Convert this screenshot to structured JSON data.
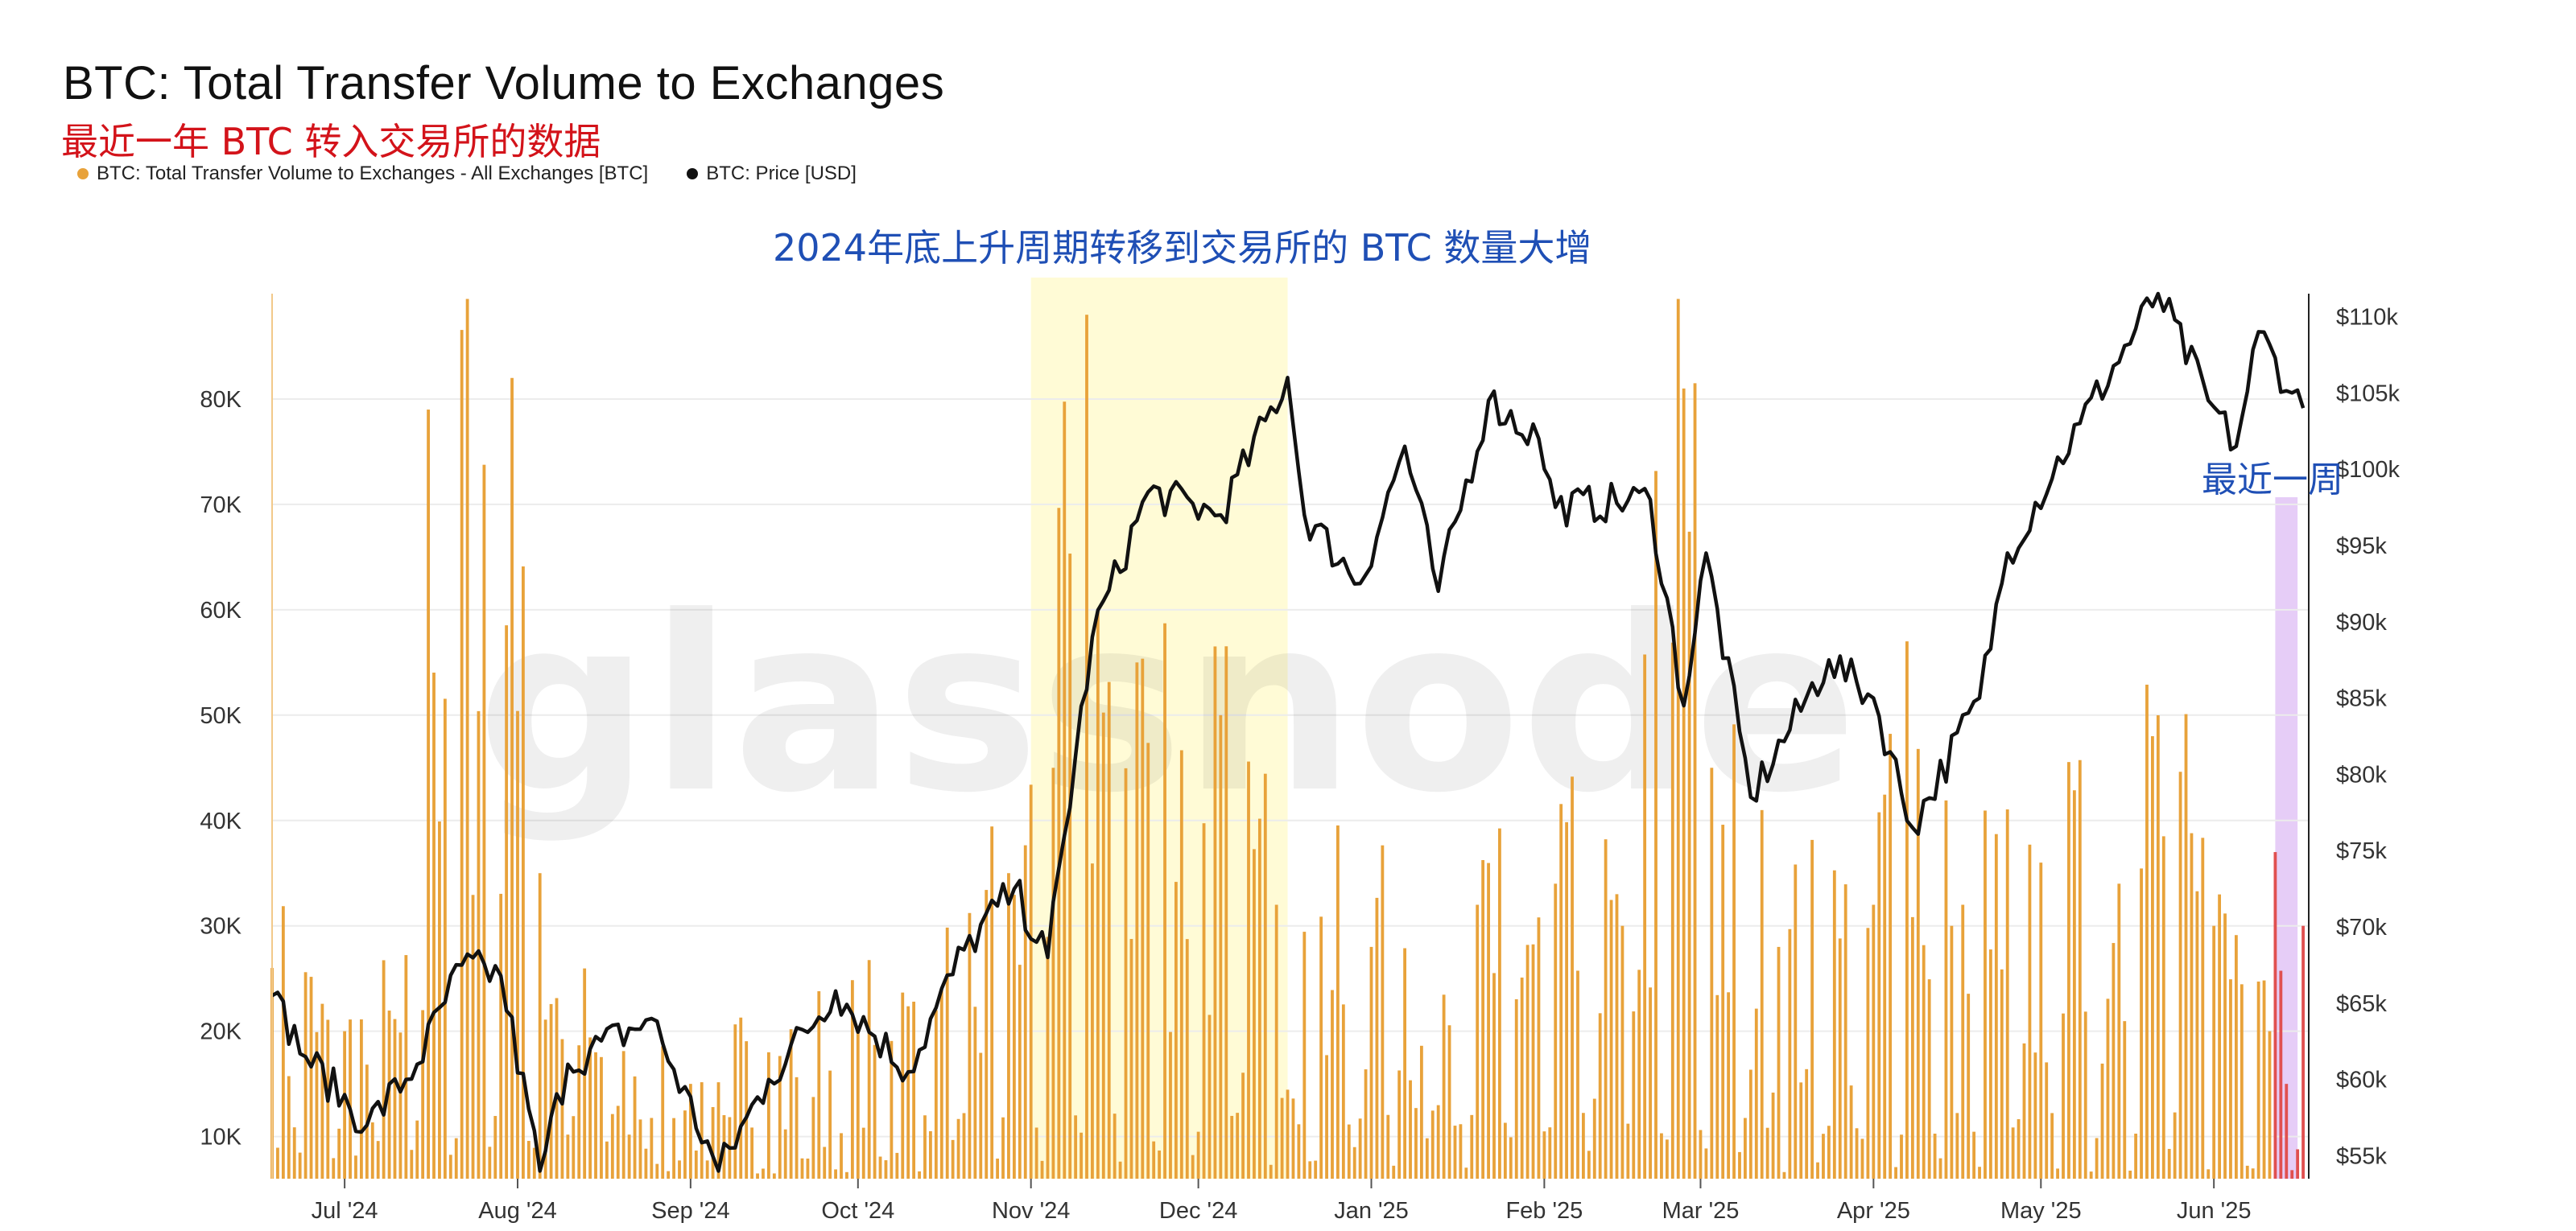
{
  "header": {
    "title": "BTC: Total Transfer Volume to Exchanges",
    "subtitle": "最近一年 BTC 转入交易所的数据"
  },
  "legend": [
    {
      "label": "BTC: Total Transfer Volume to Exchanges - All Exchanges [BTC]",
      "color": "#e8a23a"
    },
    {
      "label": "BTC: Price [USD]",
      "color": "#111111"
    }
  ],
  "annotations": {
    "main": "2024年底上升周期转移到交易所的 BTC 数量大增",
    "recent_week": "最近一周"
  },
  "watermark": "glassnode",
  "colors": {
    "bar": "#e8a23a",
    "bar_recent": "#e05050",
    "price_line": "#111111",
    "highlight_period": "#fffbd6",
    "highlight_week": "#e6cdf7"
  },
  "chart_data": {
    "type": "bar",
    "x_range": [
      "2024-06-18",
      "2025-06-18"
    ],
    "x_ticks": [
      "Jul '24",
      "Aug '24",
      "Sep '24",
      "Oct '24",
      "Nov '24",
      "Dec '24",
      "Jan '25",
      "Feb '25",
      "Mar '25",
      "Apr '25",
      "May '25",
      "Jun '25"
    ],
    "y_left": {
      "ticks": [
        "10K",
        "20K",
        "30K",
        "40K",
        "50K",
        "60K",
        "70K",
        "80K"
      ],
      "range": [
        6000,
        90000
      ]
    },
    "y_right": {
      "ticks": [
        "$55k",
        "$60k",
        "$65k",
        "$70k",
        "$75k",
        "$80k",
        "$85k",
        "$90k",
        "$95k",
        "$100k",
        "$105k",
        "$110k"
      ],
      "range": [
        53500,
        111500
      ]
    },
    "highlight_period": [
      "2024-11-01",
      "2024-12-17"
    ],
    "highlight_week": [
      "2025-06-12",
      "2025-06-16"
    ],
    "series": [
      {
        "name": "BTC: Total Transfer Volume to Exchanges - All Exchanges [BTC]",
        "axis": "left",
        "keypoints": [
          [
            "2024-06-18",
            26000
          ],
          [
            "2024-07-01",
            20000
          ],
          [
            "2024-07-15",
            22000
          ],
          [
            "2024-07-16",
            79000
          ],
          [
            "2024-07-31",
            82000
          ],
          [
            "2024-08-05",
            35000
          ],
          [
            "2024-08-15",
            18000
          ],
          [
            "2024-09-01",
            15000
          ],
          [
            "2024-09-15",
            18000
          ],
          [
            "2024-10-01",
            20000
          ],
          [
            "2024-10-15",
            22000
          ],
          [
            "2024-10-28",
            35000
          ],
          [
            "2024-11-05",
            45000
          ],
          [
            "2024-11-11",
            88000
          ],
          [
            "2024-11-13",
            60000
          ],
          [
            "2024-11-20",
            55000
          ],
          [
            "2024-12-05",
            50000
          ],
          [
            "2024-12-15",
            32000
          ],
          [
            "2025-01-01",
            28000
          ],
          [
            "2025-01-20",
            32000
          ],
          [
            "2025-02-03",
            34000
          ],
          [
            "2025-02-15",
            30000
          ],
          [
            "2025-02-26",
            81000
          ],
          [
            "2025-03-03",
            45000
          ],
          [
            "2025-03-15",
            28000
          ],
          [
            "2025-04-01",
            32000
          ],
          [
            "2025-04-07",
            57000
          ],
          [
            "2025-04-15",
            30000
          ],
          [
            "2025-05-01",
            36000
          ],
          [
            "2025-05-15",
            34000
          ],
          [
            "2025-05-21",
            48000
          ],
          [
            "2025-06-01",
            30000
          ],
          [
            "2025-06-12",
            37000
          ],
          [
            "2025-06-14",
            15000
          ],
          [
            "2025-06-17",
            30000
          ]
        ]
      },
      {
        "name": "BTC: Price [USD]",
        "axis": "right",
        "keypoints": [
          [
            "2024-06-18",
            65500
          ],
          [
            "2024-06-24",
            61500
          ],
          [
            "2024-07-05",
            57000
          ],
          [
            "2024-07-14",
            61000
          ],
          [
            "2024-07-22",
            67500
          ],
          [
            "2024-07-29",
            66800
          ],
          [
            "2024-08-05",
            54000
          ],
          [
            "2024-08-10",
            61000
          ],
          [
            "2024-08-25",
            64000
          ],
          [
            "2024-09-06",
            54000
          ],
          [
            "2024-09-15",
            60000
          ],
          [
            "2024-09-27",
            65800
          ],
          [
            "2024-10-10",
            60500
          ],
          [
            "2024-10-20",
            68500
          ],
          [
            "2024-10-29",
            72500
          ],
          [
            "2024-11-04",
            68000
          ],
          [
            "2024-11-12",
            89000
          ],
          [
            "2024-11-22",
            98500
          ],
          [
            "2024-12-05",
            97000
          ],
          [
            "2024-12-17",
            106000
          ],
          [
            "2024-12-20",
            97000
          ],
          [
            "2024-12-30",
            92500
          ],
          [
            "2025-01-07",
            101500
          ],
          [
            "2025-01-13",
            92000
          ],
          [
            "2025-01-22",
            104500
          ],
          [
            "2025-01-31",
            102000
          ],
          [
            "2025-02-03",
            97500
          ],
          [
            "2025-02-20",
            98000
          ],
          [
            "2025-02-26",
            84500
          ],
          [
            "2025-03-02",
            94500
          ],
          [
            "2025-03-10",
            78500
          ],
          [
            "2025-03-24",
            87500
          ],
          [
            "2025-04-01",
            85000
          ],
          [
            "2025-04-08",
            76500
          ],
          [
            "2025-04-20",
            85000
          ],
          [
            "2025-04-25",
            94500
          ],
          [
            "2025-05-08",
            103000
          ],
          [
            "2025-05-22",
            111500
          ],
          [
            "2025-05-31",
            104500
          ],
          [
            "2025-06-05",
            101500
          ],
          [
            "2025-06-09",
            109000
          ],
          [
            "2025-06-15",
            105000
          ],
          [
            "2025-06-17",
            104000
          ]
        ]
      }
    ],
    "grid": true
  }
}
